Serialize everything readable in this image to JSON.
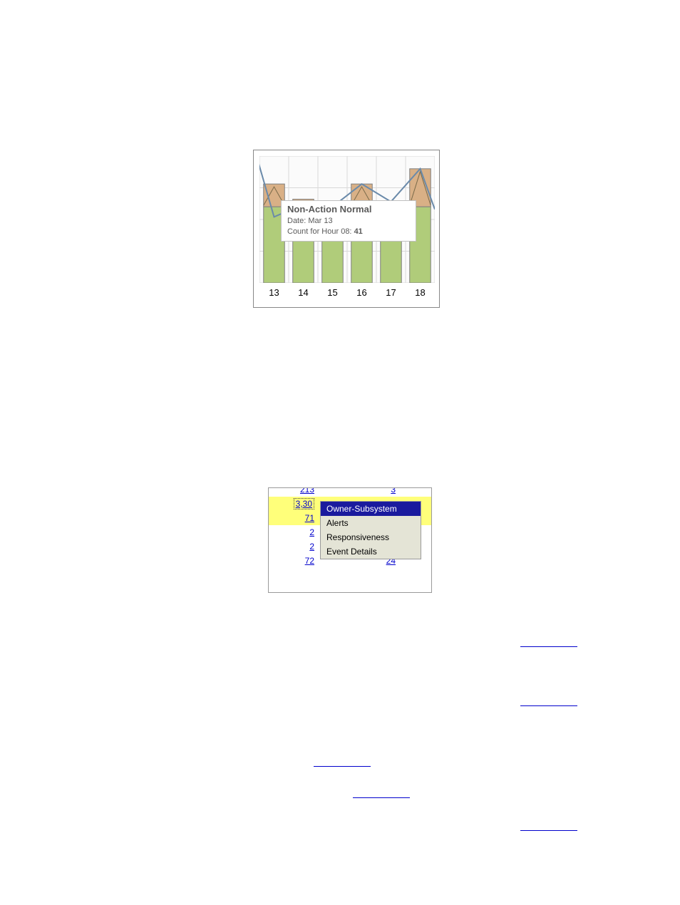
{
  "chart": {
    "type": "bar-line",
    "x_labels": [
      "13",
      "14",
      "15",
      "16",
      "17",
      "18"
    ],
    "bars": [
      {
        "x": 0,
        "green_top": 0.4,
        "orange_top": 0.22,
        "green_color": "#b0cc7a",
        "orange_color": "#d9b086"
      },
      {
        "x": 1,
        "green_top": 0.4,
        "orange_top": 0.34,
        "green_color": "#b0cc7a",
        "orange_color": "#d9b086"
      },
      {
        "x": 2,
        "green_top": 0.4,
        "orange_top": 0.4,
        "green_color": "#b0cc7a",
        "orange_color": "#d9b086"
      },
      {
        "x": 3,
        "green_top": 0.4,
        "orange_top": 0.22,
        "green_color": "#b0cc7a",
        "orange_color": "#d9b086"
      },
      {
        "x": 4,
        "green_top": 0.4,
        "orange_top": 0.36,
        "green_color": "#b0cc7a",
        "orange_color": "#d9b086"
      },
      {
        "x": 5,
        "green_top": 0.4,
        "orange_top": 0.1,
        "green_color": "#b0cc7a",
        "orange_color": "#d9b086"
      }
    ],
    "line_points": [
      {
        "x": -0.1,
        "y": 0.0
      },
      {
        "x": 0.5,
        "y": 0.48
      },
      {
        "x": 1.5,
        "y": 0.38
      },
      {
        "x": 2.5,
        "y": 0.4
      },
      {
        "x": 3.5,
        "y": 0.22
      },
      {
        "x": 4.5,
        "y": 0.36
      },
      {
        "x": 5.5,
        "y": 0.1
      },
      {
        "x": 6.0,
        "y": 0.42
      }
    ],
    "line_color": "#6a8aaa",
    "grid_color": "#d9d9d9",
    "bar_outline": "#808080",
    "tooltip": {
      "title": "Non-Action Normal",
      "date_label": "Date: ",
      "date_value": "Mar 13",
      "count_label": "Count for Hour 08: ",
      "count_value": "41"
    }
  },
  "table": {
    "rows": [
      {
        "left": "213",
        "right": "3",
        "highlight": false
      },
      {
        "left": "3,30",
        "right": "",
        "highlight": true,
        "dotted": true
      },
      {
        "left": "71",
        "right": "",
        "highlight": true
      },
      {
        "left": "2",
        "right": "",
        "highlight": false
      },
      {
        "left": "2",
        "right": "",
        "highlight": false
      },
      {
        "left": "72",
        "right": "24",
        "highlight": false
      }
    ],
    "menu": {
      "items": [
        {
          "label": "Owner-Subsystem",
          "selected": true
        },
        {
          "label": "Alerts",
          "selected": false
        },
        {
          "label": "Responsiveness",
          "selected": false
        },
        {
          "label": "Event Details",
          "selected": false
        }
      ]
    }
  },
  "links": {
    "link1": " ",
    "link2": " ",
    "link3": " ",
    "link4": " ",
    "link5": " "
  }
}
